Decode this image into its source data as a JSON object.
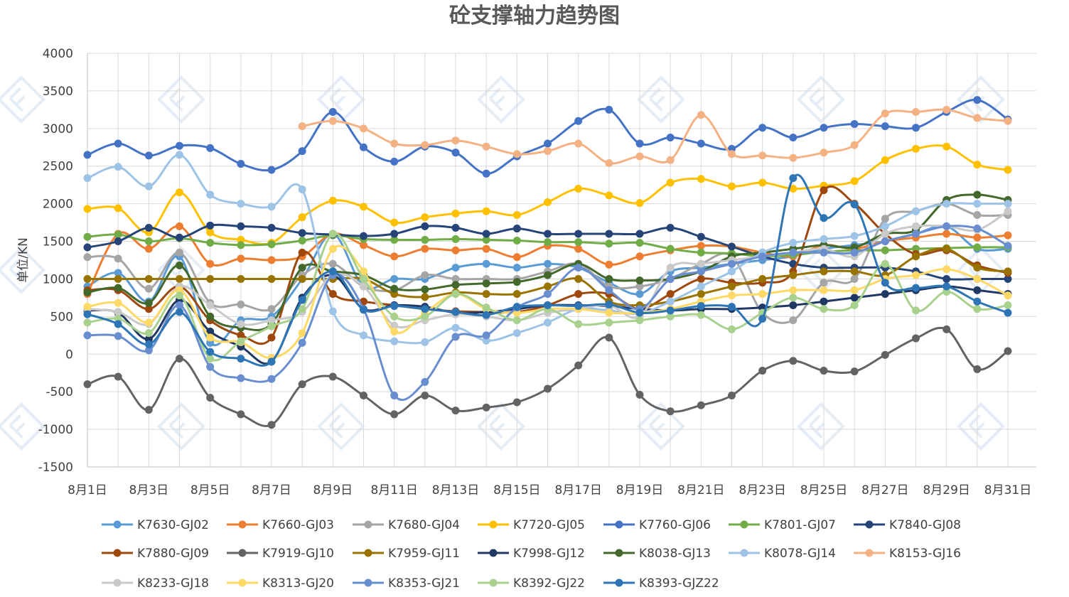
{
  "chart_data": {
    "type": "line",
    "title": "砼支撑轴力趋势图",
    "xlabel": "",
    "ylabel": "单位/KN",
    "ylim": [
      -1500,
      4000
    ],
    "yticks": [
      -1500,
      -1000,
      -500,
      0,
      500,
      1000,
      1500,
      2000,
      2500,
      3000,
      3500,
      4000
    ],
    "grid": "vertical and horizontal",
    "legend_position": "bottom",
    "x": [
      "8月1日",
      "8月2日",
      "8月3日",
      "8月4日",
      "8月5日",
      "8月6日",
      "8月7日",
      "8月8日",
      "8月9日",
      "8月10日",
      "8月11日",
      "8月12日",
      "8月13日",
      "8月14日",
      "8月15日",
      "8月16日",
      "8月17日",
      "8月18日",
      "8月19日",
      "8月20日",
      "8月21日",
      "8月22日",
      "8月23日",
      "8月24日",
      "8月25日",
      "8月26日",
      "8月27日",
      "8月28日",
      "8月29日",
      "8月30日",
      "8月31日"
    ],
    "x_tick_labels": [
      "8月1日",
      "8月3日",
      "8月5日",
      "8月7日",
      "8月9日",
      "8月11日",
      "8月13日",
      "8月15日",
      "8月17日",
      "8月19日",
      "8月21日",
      "8月23日",
      "8月25日",
      "8月27日",
      "8月29日",
      "8月31日"
    ],
    "series": [
      {
        "name": "K7630-GJ02",
        "color": "#5B9BD5",
        "values": [
          900,
          1080,
          700,
          1300,
          150,
          450,
          500,
          1000,
          1600,
          900,
          1000,
          1000,
          1150,
          1200,
          1150,
          1200,
          1150,
          950,
          800,
          1100,
          1150,
          1200,
          1250,
          1300,
          1400,
          1450,
          1500,
          1600,
          1700,
          1400,
          1400
        ]
      },
      {
        "name": "K7660-GJ03",
        "color": "#ED7D31",
        "values": [
          800,
          1600,
          1400,
          1700,
          1200,
          1270,
          1250,
          1300,
          1600,
          1450,
          1300,
          1400,
          1380,
          1400,
          1290,
          1440,
          1400,
          1190,
          1300,
          1380,
          1440,
          1430,
          1350,
          1300,
          1450,
          1400,
          1500,
          1550,
          1600,
          1550,
          1580
        ]
      },
      {
        "name": "K7680-GJ04",
        "color": "#A5A5A5",
        "values": [
          1290,
          1270,
          870,
          1350,
          680,
          660,
          600,
          1050,
          1200,
          900,
          850,
          1050,
          1000,
          1000,
          1000,
          1100,
          1200,
          900,
          900,
          1000,
          1200,
          1300,
          550,
          450,
          950,
          1000,
          1800,
          1900,
          2000,
          1850,
          1850
        ]
      },
      {
        "name": "K7720-GJ05",
        "color": "#FFC000",
        "values": [
          1930,
          1940,
          1620,
          2150,
          1620,
          1520,
          1480,
          1820,
          2040,
          1960,
          1750,
          1820,
          1870,
          1900,
          1850,
          2020,
          2200,
          2110,
          2010,
          2280,
          2330,
          2230,
          2280,
          2200,
          2240,
          2300,
          2580,
          2730,
          2760,
          2520,
          2450
        ]
      },
      {
        "name": "K7760-GJ06",
        "color": "#4472C4",
        "values": [
          2650,
          2800,
          2640,
          2770,
          2740,
          2530,
          2450,
          2700,
          3220,
          2750,
          2560,
          2760,
          2680,
          2400,
          2630,
          2800,
          3100,
          3250,
          2800,
          2880,
          2800,
          2730,
          3010,
          2880,
          3010,
          3060,
          3030,
          3010,
          3220,
          3380,
          3120
        ]
      },
      {
        "name": "K7801-GJ07",
        "color": "#70AD47",
        "values": [
          1560,
          1590,
          1500,
          1540,
          1480,
          1450,
          1460,
          1510,
          1580,
          1530,
          1520,
          1520,
          1530,
          1520,
          1510,
          1490,
          1490,
          1470,
          1480,
          1400,
          1350,
          1340,
          1300,
          1320,
          1360,
          1380,
          1380,
          1400,
          1410,
          1420,
          1420
        ]
      },
      {
        "name": "K7840-GJ08",
        "color": "#264478",
        "values": [
          1420,
          1500,
          1680,
          1550,
          1710,
          1700,
          1680,
          1610,
          1590,
          1570,
          1600,
          1700,
          1680,
          1600,
          1670,
          1600,
          1600,
          1600,
          1600,
          1680,
          1560,
          1430,
          1300,
          1200,
          1150,
          1150,
          1150,
          1100,
          1000,
          1000,
          1000
        ]
      },
      {
        "name": "K7880-GJ09",
        "color": "#9E480E",
        "values": [
          850,
          850,
          600,
          900,
          450,
          250,
          220,
          1350,
          800,
          700,
          650,
          600,
          570,
          560,
          560,
          650,
          800,
          800,
          600,
          800,
          1000,
          950,
          950,
          1100,
          2180,
          2000,
          1600,
          1330,
          1380,
          1180,
          1080
        ]
      },
      {
        "name": "K7919-GJ10",
        "color": "#636363",
        "values": [
          -400,
          -300,
          -740,
          -60,
          -580,
          -800,
          -940,
          -400,
          -300,
          -550,
          -800,
          -550,
          -750,
          -710,
          -640,
          -460,
          -150,
          220,
          -540,
          -760,
          -680,
          -550,
          -220,
          -90,
          -220,
          -230,
          -10,
          210,
          330,
          -200,
          40
        ]
      },
      {
        "name": "K7959-GJ11",
        "color": "#997300",
        "values": [
          1000,
          1000,
          1000,
          1000,
          1000,
          1000,
          1000,
          1000,
          1000,
          1000,
          800,
          760,
          820,
          800,
          800,
          900,
          1000,
          700,
          650,
          700,
          800,
          900,
          1000,
          1050,
          1100,
          1100,
          1050,
          1300,
          1400,
          1150,
          1100
        ]
      },
      {
        "name": "K7998-GJ12",
        "color": "#203864",
        "values": [
          580,
          550,
          200,
          720,
          300,
          100,
          -100,
          750,
          1050,
          600,
          650,
          630,
          550,
          560,
          600,
          650,
          650,
          640,
          600,
          580,
          600,
          600,
          620,
          650,
          700,
          750,
          800,
          850,
          900,
          850,
          800
        ]
      },
      {
        "name": "K8038-GJ13",
        "color": "#43682B",
        "values": [
          820,
          880,
          680,
          1180,
          500,
          350,
          400,
          1150,
          1100,
          1050,
          870,
          860,
          920,
          940,
          960,
          1050,
          1200,
          1000,
          980,
          1000,
          1100,
          1300,
          1350,
          1400,
          1450,
          1420,
          1600,
          1650,
          2050,
          2120,
          2050
        ]
      },
      {
        "name": "K8078-GJ14",
        "color": "#9DC3E6",
        "values": [
          2340,
          2490,
          2230,
          2650,
          2120,
          2000,
          1960,
          2190,
          570,
          250,
          170,
          160,
          350,
          180,
          280,
          420,
          600,
          580,
          540,
          700,
          900,
          1100,
          1350,
          1480,
          1530,
          1570,
          1700,
          1900,
          2000,
          2000,
          2000
        ]
      },
      {
        "name": "K8153-GJ16",
        "color": "#F4B183",
        "values": [
          null,
          null,
          null,
          null,
          null,
          null,
          null,
          3030,
          3100,
          3000,
          2800,
          2780,
          2840,
          2760,
          2660,
          2700,
          2800,
          2540,
          2630,
          2580,
          3180,
          2660,
          2640,
          2610,
          2680,
          2780,
          3200,
          3220,
          3250,
          3140,
          3100
        ]
      },
      {
        "name": "K8233-GJ18",
        "color": "#C9C9C9",
        "values": [
          600,
          560,
          400,
          900,
          650,
          400,
          450,
          560,
          1050,
          900,
          380,
          450,
          530,
          500,
          450,
          550,
          600,
          650,
          500,
          1150,
          1200,
          1250,
          1300,
          1350,
          1400,
          1300,
          1600,
          1700,
          1700,
          1650,
          1900
        ]
      },
      {
        "name": "K8313-GJ20",
        "color": "#FFD966",
        "values": [
          630,
          680,
          420,
          850,
          220,
          160,
          -50,
          280,
          1400,
          1100,
          300,
          550,
          800,
          600,
          550,
          600,
          600,
          550,
          550,
          600,
          700,
          780,
          800,
          850,
          850,
          850,
          1000,
          1050,
          1130,
          1000,
          780
        ]
      },
      {
        "name": "K8353-GJ21",
        "color": "#698ED0",
        "values": [
          250,
          240,
          50,
          650,
          -170,
          -320,
          -330,
          150,
          1050,
          600,
          -550,
          -370,
          230,
          250,
          620,
          800,
          1150,
          850,
          600,
          1000,
          1100,
          1200,
          1300,
          1350,
          1350,
          1350,
          1500,
          1600,
          1700,
          1670,
          1440
        ]
      },
      {
        "name": "K8392-GJ22",
        "color": "#A9D18E",
        "values": [
          420,
          470,
          280,
          780,
          -60,
          170,
          370,
          600,
          1600,
          1000,
          500,
          500,
          800,
          620,
          450,
          600,
          400,
          420,
          450,
          500,
          520,
          330,
          550,
          750,
          600,
          650,
          1200,
          580,
          830,
          600,
          650
        ]
      },
      {
        "name": "K8393-GJZ22",
        "color": "#2E75B6",
        "values": [
          530,
          400,
          130,
          560,
          30,
          -60,
          -100,
          720,
          1100,
          590,
          640,
          600,
          560,
          520,
          630,
          650,
          640,
          660,
          550,
          580,
          640,
          630,
          470,
          2340,
          1810,
          1990,
          950,
          880,
          900,
          700,
          550
        ]
      }
    ]
  }
}
